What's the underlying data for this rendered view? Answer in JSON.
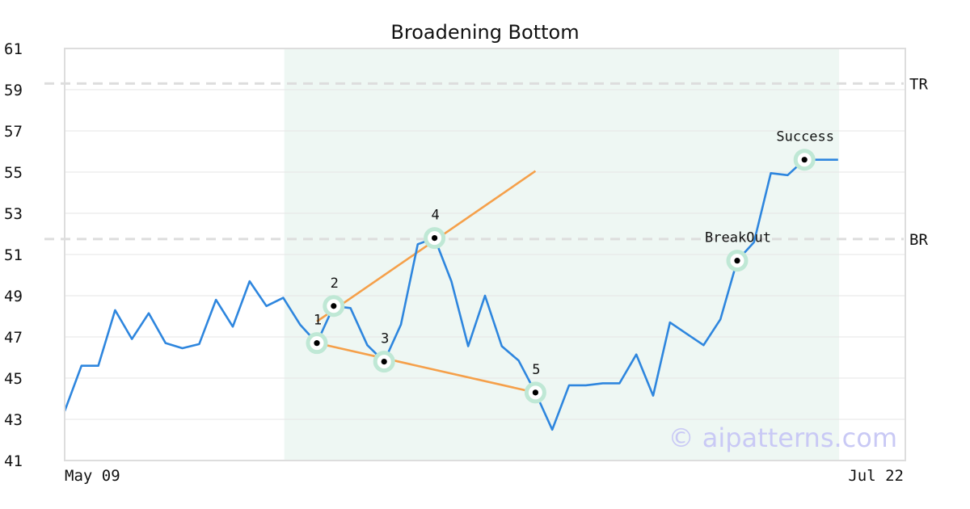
{
  "chart_data": {
    "type": "line",
    "title": "Broadening Bottom",
    "watermark": "© aipatterns.com",
    "x_start_label": "May 09",
    "x_end_label": "Jul 22",
    "ylim": [
      41,
      61
    ],
    "yticks": [
      41,
      43,
      45,
      47,
      49,
      51,
      53,
      55,
      57,
      59,
      61
    ],
    "grid": true,
    "colors": {
      "price_line": "#2e86de",
      "trend_line": "#f5a04a",
      "pattern_zone": "#eef7f3",
      "marker_halo": "#bfe8d5",
      "level_line": "#dddddd",
      "frame": "#dddddd"
    },
    "series": [
      {
        "values": [
          43.4,
          45.6,
          45.6,
          48.3,
          46.9,
          48.15,
          46.7,
          46.45,
          46.65,
          48.8,
          47.5,
          49.7,
          48.5,
          48.9,
          47.6,
          46.7,
          48.5,
          48.4,
          46.6,
          45.8,
          47.6,
          51.5,
          51.8,
          49.7,
          46.55,
          49.0,
          46.55,
          45.85,
          44.3,
          42.5,
          44.65,
          44.65,
          44.75,
          44.75,
          46.15,
          44.15,
          47.7,
          47.15,
          46.6,
          47.85,
          50.7,
          51.6,
          54.95,
          54.85,
          55.6,
          55.6,
          55.6
        ]
      }
    ],
    "pattern_zone_index_range": [
      13,
      46
    ],
    "levels": [
      {
        "label": "TR",
        "value": 59.3
      },
      {
        "label": "BR",
        "value": 51.75
      }
    ],
    "trend_lines": [
      {
        "from": [
          15,
          47.75
        ],
        "to": [
          28,
          55.05
        ]
      },
      {
        "from": [
          15,
          46.7
        ],
        "to": [
          28,
          44.3
        ]
      }
    ],
    "points": [
      {
        "label": "1",
        "index": 15,
        "value": 46.7
      },
      {
        "label": "2",
        "index": 16,
        "value": 48.5
      },
      {
        "label": "3",
        "index": 19,
        "value": 45.8
      },
      {
        "label": "4",
        "index": 22,
        "value": 51.8
      },
      {
        "label": "5",
        "index": 28,
        "value": 44.3
      },
      {
        "label": "BreakOut",
        "index": 40,
        "value": 50.7
      },
      {
        "label": "Success",
        "index": 44,
        "value": 55.6
      }
    ]
  }
}
